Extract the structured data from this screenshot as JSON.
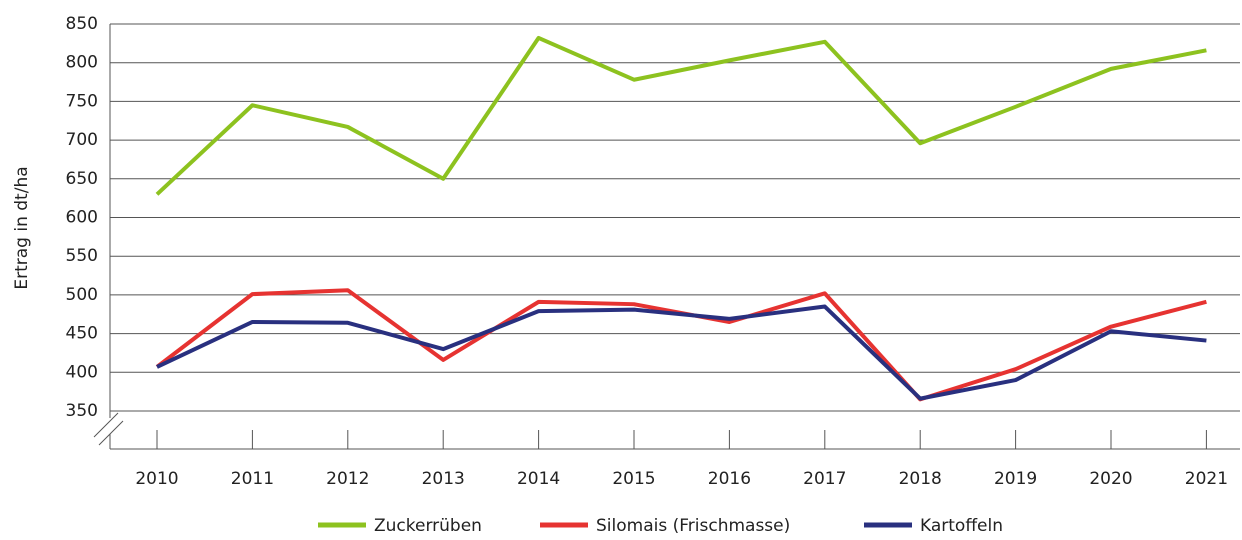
{
  "chart_data": {
    "type": "line",
    "y_label": "Ertrag in dt/ha",
    "categories": [
      "2010",
      "2011",
      "2012",
      "2013",
      "2014",
      "2015",
      "2016",
      "2017",
      "2018",
      "2019",
      "2020",
      "2021"
    ],
    "series": [
      {
        "name": "Zuckerrüben",
        "color": "#8dc21f",
        "values": [
          630,
          745,
          717,
          650,
          832,
          778,
          803,
          827,
          696,
          743,
          792,
          816
        ]
      },
      {
        "name": "Silomais (Frischmasse)",
        "color": "#e63331",
        "values": [
          407,
          501,
          506,
          416,
          491,
          488,
          465,
          502,
          365,
          404,
          459,
          491
        ]
      },
      {
        "name": "Kartoffeln",
        "color": "#29307f",
        "values": [
          407,
          465,
          464,
          430,
          479,
          481,
          469,
          485,
          366,
          390,
          453,
          441
        ]
      }
    ],
    "ylim": [
      350,
      850
    ],
    "yticks": [
      350,
      400,
      450,
      500,
      550,
      600,
      650,
      700,
      750,
      800,
      850
    ],
    "grid": true
  }
}
